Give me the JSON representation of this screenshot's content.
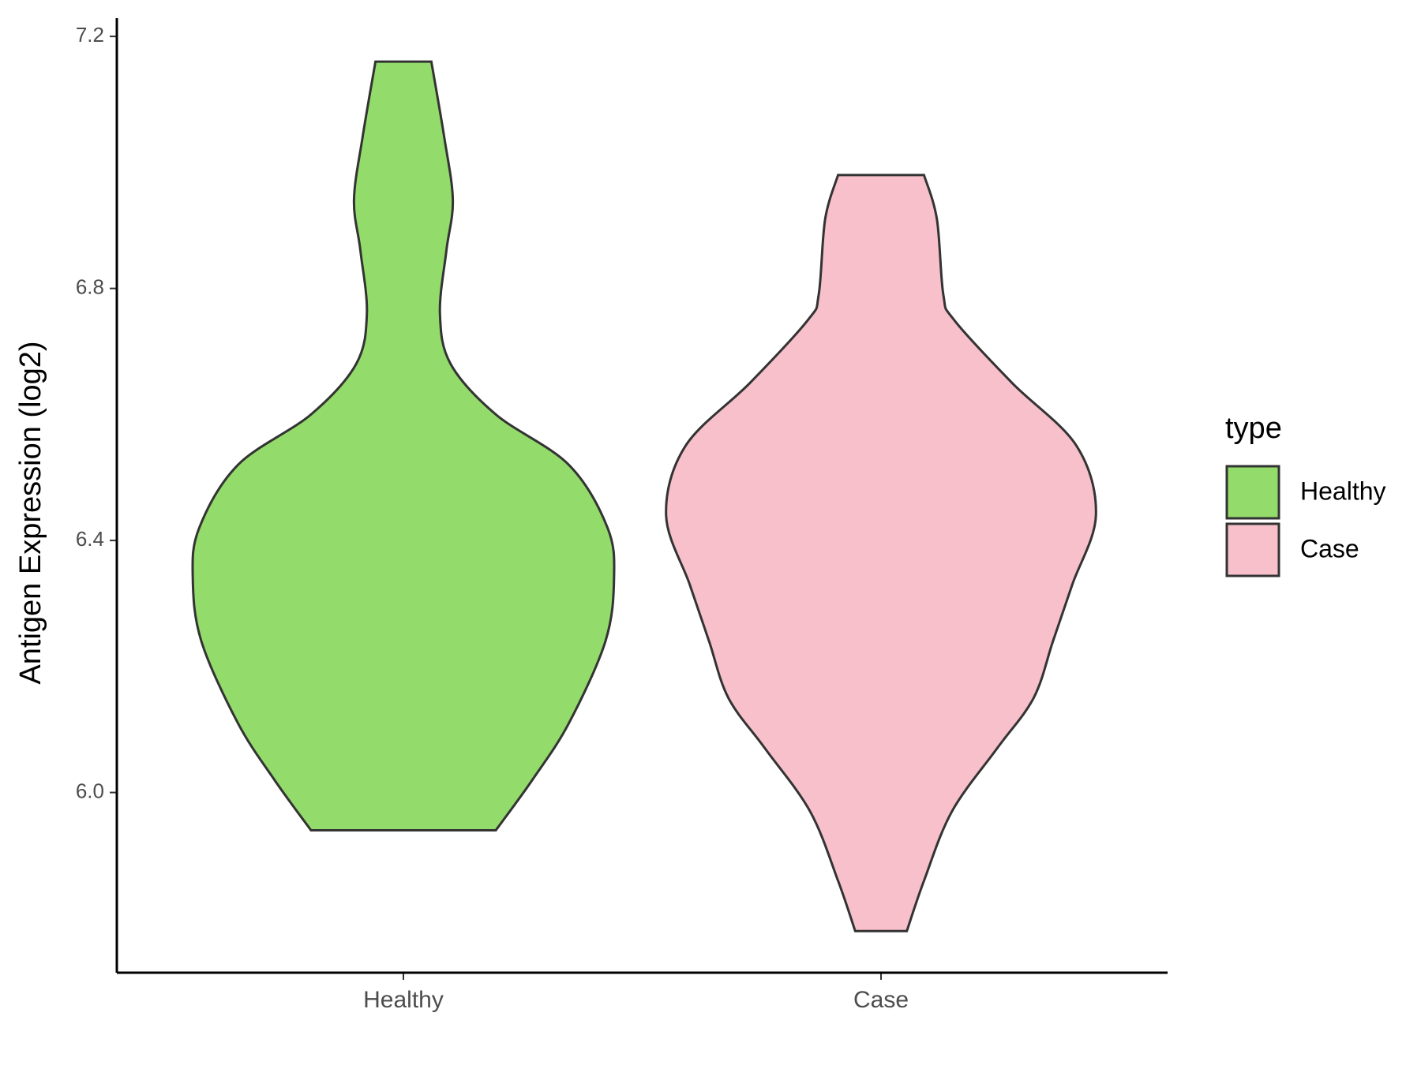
{
  "chart_data": {
    "type": "violin",
    "y_label": "Antigen Expression (log2)",
    "categories": [
      "Healthy",
      "Case"
    ],
    "legend_title": "type",
    "legend_position": "right",
    "series": [
      {
        "name": "Healthy",
        "color": "#93DB6A",
        "y": [
          7.16,
          7.04,
          6.94,
          6.86,
          6.76,
          6.68,
          6.6,
          6.52,
          6.42,
          6.34,
          6.24,
          6.11,
          6.02,
          5.94
        ],
        "density": [
          0.13,
          0.19,
          0.23,
          0.2,
          0.17,
          0.22,
          0.43,
          0.77,
          0.95,
          0.98,
          0.94,
          0.77,
          0.6,
          0.43
        ]
      },
      {
        "name": "Case",
        "color": "#F7C0CB",
        "y": [
          6.98,
          6.91,
          6.79,
          6.75,
          6.65,
          6.55,
          6.44,
          6.33,
          6.24,
          6.15,
          6.07,
          5.97,
          5.86,
          5.78
        ],
        "density": [
          0.2,
          0.26,
          0.29,
          0.34,
          0.61,
          0.91,
          1.0,
          0.89,
          0.8,
          0.71,
          0.54,
          0.33,
          0.2,
          0.12
        ]
      }
    ],
    "ylim": [
      5.714,
      7.229
    ],
    "yticks": [
      {
        "value": 6,
        "label": "6.0"
      },
      6.4,
      6.8,
      7.2
    ],
    "grid": false
  }
}
